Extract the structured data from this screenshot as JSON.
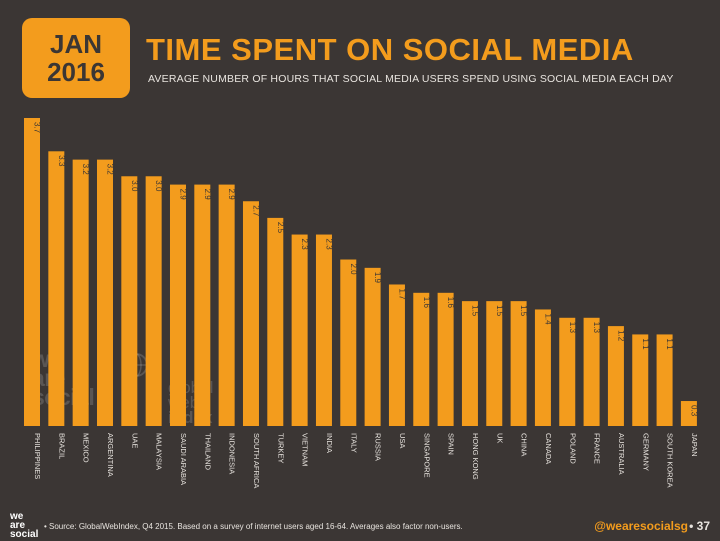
{
  "header": {
    "date_month": "JAN",
    "date_year": "2016",
    "title": "TIME SPENT ON SOCIAL MEDIA",
    "subtitle": "AVERAGE NUMBER OF HOURS THAT SOCIAL MEDIA USERS SPEND USING SOCIAL MEDIA EACH DAY"
  },
  "watermark": {
    "brand_lines": [
      "we",
      "are",
      "social"
    ],
    "partner_lines": [
      "global",
      "web",
      "index"
    ]
  },
  "footer": {
    "logo_lines": [
      "we",
      "are",
      "social"
    ],
    "source": "•  Source: GlobalWebIndex, Q4 2015. Based on a survey of internet users aged 16-64. Averages also factor non-users.",
    "handle": "@wearesocialsg",
    "page": "• 37"
  },
  "colors": {
    "background": "#3b3634",
    "accent": "#f39c1d",
    "text": "#e8e4df"
  },
  "chart_data": {
    "type": "bar",
    "categories": [
      "PHILIPPINES",
      "BRAZIL",
      "MEXICO",
      "ARGENTINA",
      "UAE",
      "MALAYSIA",
      "SAUDI ARABIA",
      "THAILAND",
      "INDONESIA",
      "SOUTH AFRICA",
      "TURKEY",
      "VIETNAM",
      "INDIA",
      "ITALY",
      "RUSSIA",
      "USA",
      "SINGAPORE",
      "SPAIN",
      "HONG KONG",
      "UK",
      "CHINA",
      "CANADA",
      "POLAND",
      "FRANCE",
      "AUSTRALIA",
      "GERMANY",
      "SOUTH KOREA",
      "JAPAN"
    ],
    "values": [
      3.7,
      3.3,
      3.2,
      3.2,
      3.0,
      3.0,
      2.9,
      2.9,
      2.9,
      2.7,
      2.5,
      2.3,
      2.3,
      2.0,
      1.9,
      1.7,
      1.6,
      1.6,
      1.5,
      1.5,
      1.5,
      1.4,
      1.3,
      1.3,
      1.2,
      1.1,
      1.1,
      0.3
    ],
    "value_labels": [
      "3.7",
      "3.3",
      "3.2",
      "3.2",
      "3.0",
      "3.0",
      "2.9",
      "2.9",
      "2.9",
      "2.7",
      "2.5",
      "2.3",
      "2.3",
      "2.0",
      "1.9",
      "1.7",
      "1.6",
      "1.6",
      "1.5",
      "1.5",
      "1.5",
      "1.4",
      "1.3",
      "1.3",
      "1.2",
      "1.1",
      "1.1",
      "0.3"
    ],
    "ylim": [
      0,
      3.7
    ],
    "grid": false,
    "legend": "none",
    "title": "TIME SPENT ON SOCIAL MEDIA",
    "xlabel": "",
    "ylabel": ""
  }
}
